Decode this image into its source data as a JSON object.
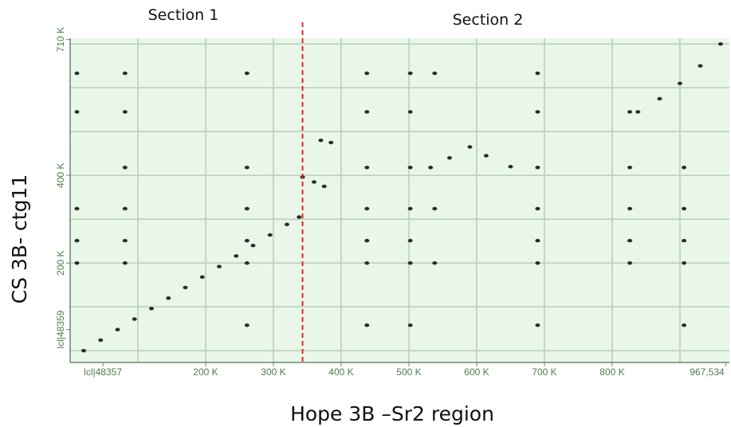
{
  "chart_data": {
    "type": "scatter",
    "x_label": "Hope 3B –Sr2 region",
    "y_label": "CS 3B- ctg11",
    "annotations": [
      "Section 1",
      "Section 2"
    ],
    "divider": 343000,
    "divider_color": "#e8231f",
    "color": "#2b2b2b",
    "background": "#e8f7e8",
    "grid": true,
    "xlim": [
      0,
      973000
    ],
    "ylim": [
      -27000,
      713000
    ],
    "xticks": [
      {
        "value": 48357,
        "label": "lcl|48357"
      },
      {
        "value": 200000,
        "label": "200 K"
      },
      {
        "value": 300000,
        "label": "300 K"
      },
      {
        "value": 400000,
        "label": "400 K"
      },
      {
        "value": 500000,
        "label": "500 K"
      },
      {
        "value": 600000,
        "label": "600 K"
      },
      {
        "value": 700000,
        "label": "700 K"
      },
      {
        "value": 800000,
        "label": "800 K"
      },
      {
        "value": 967534,
        "label": "967,534"
      }
    ],
    "yticks": [
      {
        "value": 48359,
        "label": "lcl|48359"
      },
      {
        "value": 200000,
        "label": "200 K"
      },
      {
        "value": 400000,
        "label": "400 K"
      },
      {
        "value": 710000,
        "label": "710 K"
      }
    ],
    "xgrid": [
      100000,
      200000,
      300000,
      400000,
      500000,
      600000,
      700000,
      800000,
      900000
    ],
    "ygrid": [
      0,
      100000,
      200000,
      300000,
      400000,
      500000,
      600000,
      700000
    ],
    "x": [
      20000,
      45000,
      70000,
      95000,
      120000,
      145000,
      170000,
      195000,
      220000,
      245000,
      270000,
      295000,
      320000,
      338000,
      343000,
      360000,
      375000,
      370000,
      385000,
      532000,
      560000,
      590000,
      614000,
      650000,
      838000,
      870000,
      900000,
      930000,
      960000,
      81000,
      81000,
      81000,
      81000,
      81000,
      81000,
      261000,
      261000,
      261000,
      261000,
      261000,
      261000,
      438000,
      438000,
      438000,
      438000,
      438000,
      438000,
      438000,
      502000,
      502000,
      502000,
      502000,
      502000,
      502000,
      502000,
      538000,
      538000,
      538000,
      690000,
      690000,
      690000,
      690000,
      690000,
      690000,
      690000,
      826000,
      826000,
      826000,
      826000,
      826000,
      906000,
      906000,
      906000,
      906000,
      906000,
      10000,
      10000,
      10000,
      10000,
      10000
    ],
    "y": [
      0,
      24000,
      48000,
      72000,
      96000,
      120000,
      144000,
      168000,
      192000,
      216000,
      240000,
      264000,
      288000,
      305000,
      396000,
      385000,
      375000,
      480000,
      475000,
      418000,
      440000,
      465000,
      445000,
      420000,
      545000,
      575000,
      610000,
      650000,
      700000,
      633000,
      545000,
      418000,
      324000,
      251000,
      200000,
      633000,
      418000,
      324000,
      251000,
      200000,
      58000,
      633000,
      545000,
      418000,
      324000,
      251000,
      200000,
      58000,
      633000,
      545000,
      418000,
      324000,
      251000,
      200000,
      58000,
      633000,
      324000,
      200000,
      633000,
      545000,
      418000,
      324000,
      251000,
      200000,
      58000,
      545000,
      418000,
      324000,
      251000,
      200000,
      418000,
      324000,
      251000,
      200000,
      58000,
      633000,
      545000,
      324000,
      251000,
      200000
    ]
  }
}
